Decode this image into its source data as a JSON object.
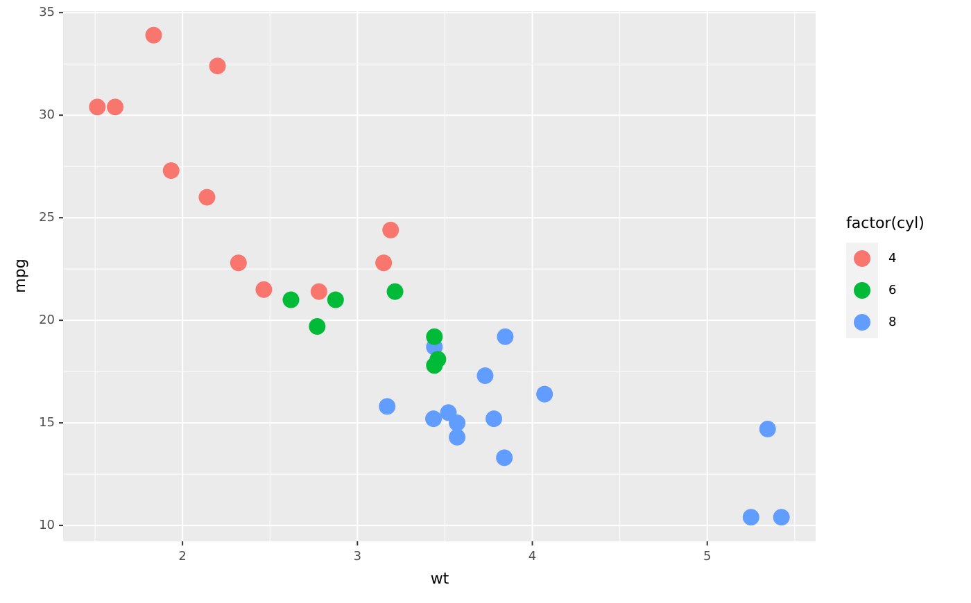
{
  "chart_data": {
    "type": "scatter",
    "x_label": "wt",
    "y_label": "mpg",
    "legend_title": "factor(cyl)",
    "legend_position": "right",
    "series": [
      {
        "name": "4",
        "color": "#F8766D",
        "x": [
          2.32,
          3.19,
          3.15,
          2.2,
          1.615,
          1.835,
          2.465,
          1.935,
          2.14,
          1.513,
          2.78
        ],
        "values": [
          22.8,
          24.4,
          22.8,
          32.4,
          30.4,
          33.9,
          21.5,
          27.3,
          26,
          30.4,
          21.4
        ]
      },
      {
        "name": "6",
        "color": "#00BA38",
        "x": [
          2.62,
          2.875,
          3.215,
          3.46,
          3.44,
          3.44,
          2.77
        ],
        "values": [
          21,
          21,
          21.4,
          18.1,
          19.2,
          17.8,
          19.7
        ]
      },
      {
        "name": "8",
        "color": "#619CFF",
        "x": [
          3.44,
          3.57,
          4.07,
          3.73,
          3.78,
          5.25,
          5.424,
          5.345,
          3.52,
          3.435,
          3.84,
          3.845,
          3.17,
          3.57
        ],
        "values": [
          18.7,
          14.3,
          16.4,
          17.3,
          15.2,
          10.4,
          10.4,
          14.7,
          15.5,
          15.2,
          13.3,
          19.2,
          15.8,
          15
        ]
      }
    ],
    "xlim": [
      1.3175,
      5.6196
    ],
    "ylim": [
      9.225,
      35.075
    ],
    "xticks": [
      2,
      3,
      4,
      5
    ],
    "yticks": [
      10,
      15,
      20,
      25,
      30,
      35
    ],
    "xminor_ticks": [
      1.5,
      2.5,
      3.5,
      4.5,
      5.5
    ],
    "yminor_ticks": [
      12.5,
      17.5,
      22.5,
      27.5,
      32.5
    ],
    "grid": true
  }
}
